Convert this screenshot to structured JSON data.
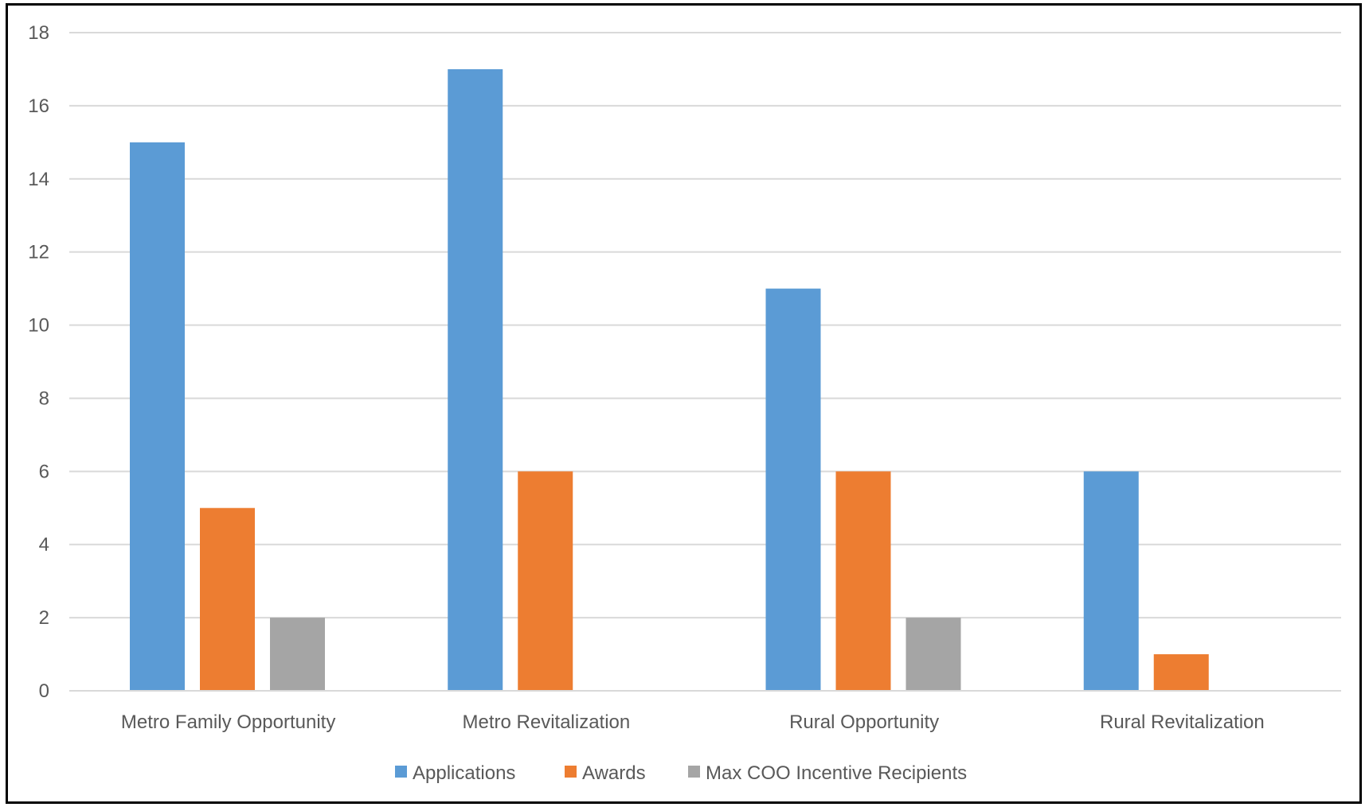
{
  "chart_data": {
    "type": "bar",
    "title": "",
    "xlabel": "",
    "ylabel": "",
    "ylim": [
      0,
      18
    ],
    "yticks": [
      0,
      2,
      4,
      6,
      8,
      10,
      12,
      14,
      16,
      18
    ],
    "grid": true,
    "legend_position": "bottom",
    "categories": [
      "Metro Family Opportunity",
      "Metro Revitalization",
      "Rural Opportunity",
      "Rural Revitalization"
    ],
    "series": [
      {
        "name": "Applications",
        "color": "#5B9BD5",
        "values": [
          15,
          17,
          11,
          6
        ]
      },
      {
        "name": "Awards",
        "color": "#ED7D31",
        "values": [
          5,
          6,
          6,
          1
        ]
      },
      {
        "name": "Max COO Incentive Recipients",
        "color": "#A5A5A5",
        "values": [
          2,
          0,
          2,
          0
        ]
      }
    ]
  }
}
